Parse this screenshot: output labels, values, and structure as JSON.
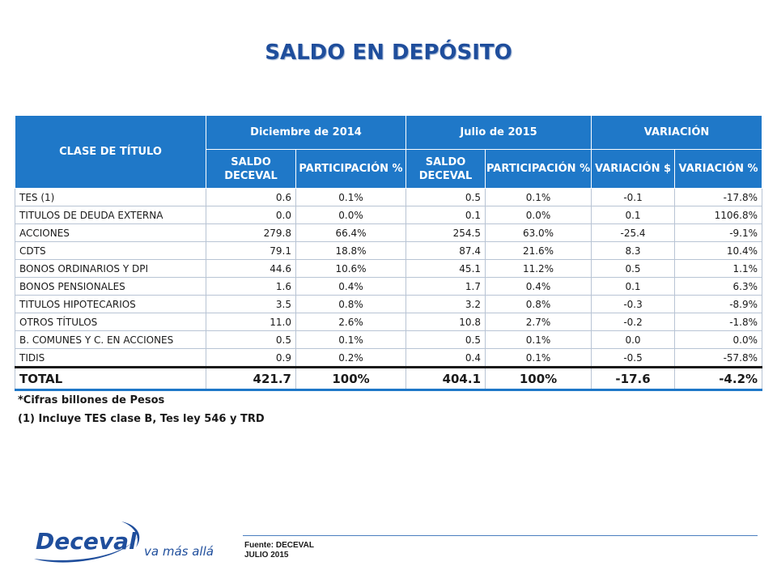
{
  "title": "SALDO EN DEPÓSITO",
  "table": {
    "header_clase": "CLASE DE TÍTULO",
    "group_dic": "Diciembre de 2014",
    "group_jul": "Julio de 2015",
    "group_var": "VARIACIÓN",
    "sub_saldo_dic": "SALDO DECEVAL",
    "sub_part_dic": "PARTICIPACIÓN %",
    "sub_saldo_jul": "SALDO DECEVAL",
    "sub_part_jul": "PARTICIPACIÓN %",
    "sub_var_abs": "VARIACIÓN $",
    "sub_var_pct": "VARIACIÓN %",
    "rows": [
      {
        "name": "TES (1)",
        "saldo_dic": "0.6",
        "part_dic": "0.1%",
        "saldo_jul": "0.5",
        "part_jul": "0.1%",
        "var_abs": "-0.1",
        "var_pct": "-17.8%"
      },
      {
        "name": "TITULOS DE DEUDA EXTERNA",
        "saldo_dic": "0.0",
        "part_dic": "0.0%",
        "saldo_jul": "0.1",
        "part_jul": "0.0%",
        "var_abs": "0.1",
        "var_pct": "1106.8%"
      },
      {
        "name": "ACCIONES",
        "saldo_dic": "279.8",
        "part_dic": "66.4%",
        "saldo_jul": "254.5",
        "part_jul": "63.0%",
        "var_abs": "-25.4",
        "var_pct": "-9.1%"
      },
      {
        "name": "CDTS",
        "saldo_dic": "79.1",
        "part_dic": "18.8%",
        "saldo_jul": "87.4",
        "part_jul": "21.6%",
        "var_abs": "8.3",
        "var_pct": "10.4%"
      },
      {
        "name": "BONOS ORDINARIOS Y DPI",
        "saldo_dic": "44.6",
        "part_dic": "10.6%",
        "saldo_jul": "45.1",
        "part_jul": "11.2%",
        "var_abs": "0.5",
        "var_pct": "1.1%"
      },
      {
        "name": "BONOS PENSIONALES",
        "saldo_dic": "1.6",
        "part_dic": "0.4%",
        "saldo_jul": "1.7",
        "part_jul": "0.4%",
        "var_abs": "0.1",
        "var_pct": "6.3%"
      },
      {
        "name": "TITULOS HIPOTECARIOS",
        "saldo_dic": "3.5",
        "part_dic": "0.8%",
        "saldo_jul": "3.2",
        "part_jul": "0.8%",
        "var_abs": "-0.3",
        "var_pct": "-8.9%"
      },
      {
        "name": "OTROS TÍTULOS",
        "saldo_dic": "11.0",
        "part_dic": "2.6%",
        "saldo_jul": "10.8",
        "part_jul": "2.7%",
        "var_abs": "-0.2",
        "var_pct": "-1.8%"
      },
      {
        "name": "B. COMUNES Y C. EN ACCIONES",
        "saldo_dic": "0.5",
        "part_dic": "0.1%",
        "saldo_jul": "0.5",
        "part_jul": "0.1%",
        "var_abs": "0.0",
        "var_pct": "0.0%"
      },
      {
        "name": "TIDIS",
        "saldo_dic": "0.9",
        "part_dic": "0.2%",
        "saldo_jul": "0.4",
        "part_jul": "0.1%",
        "var_abs": "-0.5",
        "var_pct": "-57.8%"
      }
    ],
    "total": {
      "name": "TOTAL",
      "saldo_dic": "421.7",
      "part_dic": "100%",
      "saldo_jul": "404.1",
      "part_jul": "100%",
      "var_abs": "-17.6",
      "var_pct": "-4.2%"
    }
  },
  "notes": {
    "cifras": "*Cifras billones de Pesos",
    "incluye": "(1) Incluye TES clase B, Tes ley 546 y TRD"
  },
  "logo": {
    "brand": "Deceval",
    "slogan": "va más allá"
  },
  "footer": {
    "fuente": "Fuente: DECEVAL",
    "fecha": "JULIO 2015"
  },
  "colors": {
    "header_bg": "#1f78c8",
    "title": "#1f4e9c"
  }
}
